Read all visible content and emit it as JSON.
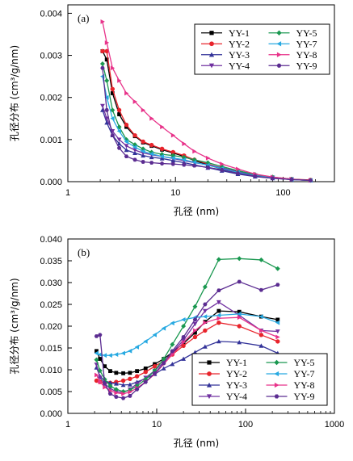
{
  "chart_data": [
    {
      "type": "line",
      "panel_label": "(a)",
      "xlabel": "孔径 (nm)",
      "ylabel": "孔径分布 (cm³/g/nm)",
      "xscale": "log",
      "xlim": [
        1,
        300
      ],
      "ylim": [
        0,
        0.0042
      ],
      "xticks": [
        1,
        10,
        100
      ],
      "xticklabels": [
        "1",
        "10",
        "100"
      ],
      "yticks": [
        0,
        0.001,
        0.002,
        0.003,
        0.004
      ],
      "yticklabels": [
        "0.000",
        "0.001",
        "0.002",
        "0.003",
        "0.004"
      ],
      "legend": "top-right",
      "grid": false,
      "series": [
        {
          "name": "YY-1",
          "color": "#000000",
          "marker": "square",
          "x": [
            2.1,
            2.3,
            2.6,
            3,
            3.5,
            4.2,
            5,
            6,
            7.5,
            9.5,
            12,
            15,
            20,
            27,
            38,
            55,
            80,
            120,
            180
          ],
          "y": [
            0.0031,
            0.0029,
            0.0021,
            0.0016,
            0.0013,
            0.00108,
            0.00093,
            0.00085,
            0.00076,
            0.00068,
            0.0006,
            0.0005,
            0.0004,
            0.0003,
            0.00021,
            0.00013,
            9e-05,
            5e-05,
            3e-05
          ]
        },
        {
          "name": "YY-2",
          "color": "#e8242c",
          "marker": "circle",
          "x": [
            2.1,
            2.3,
            2.6,
            3,
            3.5,
            4.2,
            5,
            6,
            7.5,
            9.5,
            12,
            15,
            20,
            27,
            38,
            55,
            80,
            120,
            180
          ],
          "y": [
            0.0031,
            0.0031,
            0.0022,
            0.0017,
            0.00135,
            0.0011,
            0.00095,
            0.00087,
            0.00078,
            0.0007,
            0.00062,
            0.00052,
            0.00042,
            0.00032,
            0.00022,
            0.00014,
            0.0001,
            6e-05,
            4e-05
          ]
        },
        {
          "name": "YY-3",
          "color": "#333399",
          "marker": "triangle",
          "x": [
            2.1,
            2.3,
            2.6,
            3,
            3.5,
            4.2,
            5,
            6,
            7.5,
            9.5,
            12,
            15,
            20,
            27,
            38,
            55,
            80,
            120,
            180
          ],
          "y": [
            0.0017,
            0.0014,
            0.0011,
            0.0009,
            0.00075,
            0.00068,
            0.00062,
            0.00058,
            0.00055,
            0.0005,
            0.00045,
            0.0004,
            0.00033,
            0.00026,
            0.00018,
            0.00012,
            8e-05,
            5e-05,
            3e-05
          ]
        },
        {
          "name": "YY-4",
          "color": "#7030a0",
          "marker": "down-triangle",
          "x": [
            2.1,
            2.3,
            2.6,
            3,
            3.5,
            4.2,
            5,
            6,
            7.5,
            9.5,
            12,
            15,
            20,
            27,
            38,
            55,
            80,
            120,
            180
          ],
          "y": [
            0.0018,
            0.0015,
            0.0012,
            0.001,
            0.00085,
            0.00075,
            0.00068,
            0.00064,
            0.0006,
            0.00055,
            0.0005,
            0.00045,
            0.0004,
            0.00033,
            0.00024,
            0.00015,
            0.0001,
            6e-05,
            3e-05
          ]
        },
        {
          "name": "YY-5",
          "color": "#1a9850",
          "marker": "diamond",
          "x": [
            2.1,
            2.3,
            2.6,
            3,
            3.5,
            4.2,
            5,
            6,
            7.5,
            9.5,
            12,
            15,
            20,
            27,
            38,
            55,
            80,
            120,
            180
          ],
          "y": [
            0.0028,
            0.0024,
            0.0017,
            0.0013,
            0.001,
            0.00088,
            0.00078,
            0.0007,
            0.00065,
            0.00062,
            0.00058,
            0.00052,
            0.00045,
            0.00036,
            0.00026,
            0.00017,
            0.00011,
            6e-05,
            3e-05
          ]
        },
        {
          "name": "YY-7",
          "color": "#27a9e1",
          "marker": "left-triangle",
          "x": [
            2.1,
            2.3,
            2.6,
            3,
            3.5,
            4.2,
            5,
            6,
            7.5,
            9.5,
            12,
            15,
            20,
            27,
            38,
            55,
            80,
            120,
            180
          ],
          "y": [
            0.0025,
            0.002,
            0.0015,
            0.0012,
            0.00095,
            0.00082,
            0.00072,
            0.00066,
            0.0006,
            0.00056,
            0.00052,
            0.00046,
            0.00039,
            0.00031,
            0.00022,
            0.00014,
            9e-05,
            5e-05,
            3e-05
          ]
        },
        {
          "name": "YY-8",
          "color": "#e8338a",
          "marker": "right-triangle",
          "x": [
            2.1,
            2.3,
            2.6,
            3,
            3.5,
            4.2,
            5,
            6,
            7.5,
            9.5,
            12,
            15,
            20,
            27,
            38,
            55,
            80,
            120,
            180
          ],
          "y": [
            0.0038,
            0.0033,
            0.0027,
            0.0024,
            0.0021,
            0.0019,
            0.0017,
            0.0015,
            0.0013,
            0.0011,
            0.0009,
            0.00072,
            0.00056,
            0.00042,
            0.0003,
            0.00018,
            0.00011,
            6e-05,
            3e-05
          ]
        },
        {
          "name": "YY-9",
          "color": "#5b2c91",
          "marker": "hexagon",
          "x": [
            2.1,
            2.3,
            2.6,
            3,
            3.5,
            4.2,
            5,
            6,
            7.5,
            9.5,
            12,
            15,
            20,
            27,
            38,
            55,
            80,
            120,
            180
          ],
          "y": [
            0.0027,
            0.0017,
            0.0011,
            0.0008,
            0.0006,
            0.00052,
            0.00047,
            0.00045,
            0.00043,
            0.00042,
            0.0004,
            0.00038,
            0.00034,
            0.00028,
            0.0002,
            0.00013,
            8e-05,
            5e-05,
            3e-05
          ]
        }
      ]
    },
    {
      "type": "line",
      "panel_label": "(b)",
      "xlabel": "孔径 (nm)",
      "ylabel": "孔径分布 (cm³/g/nm)",
      "xscale": "log",
      "xlim": [
        1,
        1000
      ],
      "ylim": [
        0,
        0.04
      ],
      "xticks": [
        1,
        10,
        100,
        1000
      ],
      "xticklabels": [
        "1",
        "10",
        "100",
        "1000"
      ],
      "yticks": [
        0,
        0.005,
        0.01,
        0.015,
        0.02,
        0.025,
        0.03,
        0.035,
        0.04
      ],
      "yticklabels": [
        "0.000",
        "0.005",
        "0.010",
        "0.015",
        "0.020",
        "0.025",
        "0.030",
        "0.035",
        "0.040"
      ],
      "legend": "bottom-right",
      "grid": false,
      "series": [
        {
          "name": "YY-1",
          "color": "#000000",
          "marker": "square",
          "x": [
            2.1,
            2.3,
            2.6,
            3,
            3.5,
            4.2,
            5,
            6,
            7.5,
            9.5,
            12,
            15,
            20,
            27,
            35,
            50,
            85,
            150,
            230
          ],
          "y": [
            0.0143,
            0.0125,
            0.0108,
            0.0097,
            0.0093,
            0.0092,
            0.0093,
            0.0097,
            0.0103,
            0.0113,
            0.0125,
            0.014,
            0.016,
            0.0185,
            0.021,
            0.0235,
            0.0233,
            0.0222,
            0.0215
          ]
        },
        {
          "name": "YY-2",
          "color": "#e8242c",
          "marker": "circle",
          "x": [
            2.1,
            2.3,
            2.6,
            3,
            3.5,
            4.2,
            5,
            6,
            7.5,
            9.5,
            12,
            15,
            20,
            27,
            35,
            50,
            85,
            150,
            230
          ],
          "y": [
            0.0075,
            0.0072,
            0.007,
            0.007,
            0.0072,
            0.0075,
            0.0079,
            0.0085,
            0.0095,
            0.0108,
            0.012,
            0.0135,
            0.0155,
            0.0175,
            0.019,
            0.0208,
            0.02,
            0.018,
            0.0165
          ]
        },
        {
          "name": "YY-3",
          "color": "#333399",
          "marker": "triangle",
          "x": [
            2.1,
            2.3,
            2.6,
            3,
            3.5,
            4.2,
            5,
            6,
            7.5,
            9.5,
            12,
            15,
            20,
            27,
            35,
            50,
            85,
            150,
            230
          ],
          "y": [
            0.0105,
            0.0085,
            0.0075,
            0.007,
            0.0068,
            0.0065,
            0.0066,
            0.0072,
            0.008,
            0.009,
            0.0103,
            0.0113,
            0.0125,
            0.014,
            0.0153,
            0.0165,
            0.0163,
            0.0155,
            0.0138
          ]
        },
        {
          "name": "YY-4",
          "color": "#7030a0",
          "marker": "down-triangle",
          "x": [
            2.1,
            2.3,
            2.6,
            3,
            3.5,
            4.2,
            5,
            6,
            7.5,
            9.5,
            12,
            15,
            20,
            27,
            35,
            50,
            85,
            150,
            230
          ],
          "y": [
            0.0112,
            0.0082,
            0.0068,
            0.0057,
            0.005,
            0.0048,
            0.0055,
            0.0068,
            0.0082,
            0.0098,
            0.0118,
            0.014,
            0.0168,
            0.0205,
            0.0235,
            0.0255,
            0.0225,
            0.019,
            0.0188
          ]
        },
        {
          "name": "YY-5",
          "color": "#1a9850",
          "marker": "diamond",
          "x": [
            2.1,
            2.3,
            2.6,
            3,
            3.5,
            4.2,
            5,
            6,
            7.5,
            9.5,
            12,
            15,
            20,
            27,
            35,
            50,
            85,
            150,
            230
          ],
          "y": [
            0.0123,
            0.0098,
            0.0078,
            0.0063,
            0.0055,
            0.005,
            0.0053,
            0.0063,
            0.0078,
            0.0098,
            0.0125,
            0.0158,
            0.02,
            0.0245,
            0.029,
            0.0353,
            0.0355,
            0.0352,
            0.0332
          ]
        },
        {
          "name": "YY-7",
          "color": "#27a9e1",
          "marker": "left-triangle",
          "x": [
            2.1,
            2.3,
            2.6,
            3,
            3.5,
            4.2,
            5,
            6,
            7.5,
            9.5,
            12,
            15,
            20,
            27,
            35,
            50,
            85,
            150,
            230
          ],
          "y": [
            0.0138,
            0.0135,
            0.0133,
            0.0133,
            0.0135,
            0.0138,
            0.0143,
            0.0152,
            0.0165,
            0.018,
            0.0195,
            0.0207,
            0.0215,
            0.022,
            0.0222,
            0.0225,
            0.0228,
            0.0222,
            0.0208
          ]
        },
        {
          "name": "YY-8",
          "color": "#e8338a",
          "marker": "right-triangle",
          "x": [
            2.1,
            2.3,
            2.6,
            3,
            3.5,
            4.2,
            5,
            6,
            7.5,
            9.5,
            12,
            15,
            20,
            27,
            35,
            50,
            85,
            150,
            230
          ],
          "y": [
            0.0088,
            0.0072,
            0.006,
            0.0052,
            0.0047,
            0.0045,
            0.0049,
            0.0058,
            0.0072,
            0.009,
            0.0113,
            0.0135,
            0.0163,
            0.019,
            0.0208,
            0.0218,
            0.022,
            0.019,
            0.0175
          ]
        },
        {
          "name": "YY-9",
          "color": "#5b2c91",
          "marker": "hexagon",
          "x": [
            2.1,
            2.3,
            2.6,
            3,
            3.5,
            4.2,
            5,
            6,
            7.5,
            9.5,
            12,
            15,
            20,
            27,
            35,
            50,
            85,
            150,
            230
          ],
          "y": [
            0.0177,
            0.018,
            0.0068,
            0.0045,
            0.0038,
            0.0035,
            0.004,
            0.0055,
            0.0072,
            0.0092,
            0.0115,
            0.0143,
            0.0175,
            0.0215,
            0.025,
            0.0282,
            0.0302,
            0.0283,
            0.0295
          ]
        }
      ]
    }
  ]
}
